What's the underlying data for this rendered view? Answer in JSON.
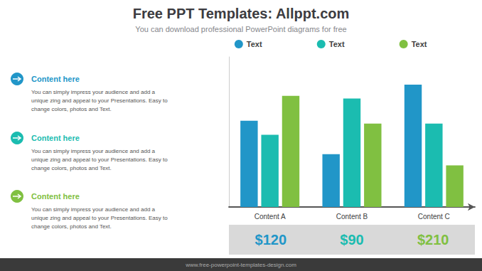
{
  "chart_data": {
    "type": "bar",
    "title": "Free PPT Templates: Allppt.com",
    "subtitle": "You can download professional PowerPoint diagrams for free",
    "categories": [
      "Content A",
      "Content B",
      "Content C"
    ],
    "series": [
      {
        "name": "Text",
        "color": "#2196c8",
        "values": [
          0.62,
          0.38,
          0.88
        ]
      },
      {
        "name": "Text",
        "color": "#1bbcb0",
        "values": [
          0.52,
          0.78,
          0.6
        ]
      },
      {
        "name": "Text",
        "color": "#80c041",
        "values": [
          0.8,
          0.6,
          0.3
        ]
      }
    ],
    "ylim": [
      0,
      1.08
    ],
    "grid": false,
    "legend": "top",
    "tick_labels": "x",
    "annotations": [
      {
        "text": "Content here",
        "color": "#2196c8"
      },
      {
        "text": "You can simply impress your audience and add a\nunique zing and appeal to your Presentations. Easy to\nchange colors, photos and Text."
      },
      {
        "text": "Content here",
        "color": "#1bbcb0"
      },
      {
        "text": "You can simply impress your audience and add a\nunique zing and appeal to your Presentations. Easy to\nchange colors, photos and Text."
      },
      {
        "text": "Content here",
        "color": "#80c041"
      },
      {
        "text": "You can simply impress your audience and add a\nunique zing and appeal to your Presentations. Easy to\nchange colors, photos and Text."
      },
      {
        "text": "$120",
        "color": "#2196c8"
      },
      {
        "text": "$90",
        "color": "#1bbcb0"
      },
      {
        "text": "$210",
        "color": "#80c041"
      },
      {
        "text": "www.free-powerpoint-templates-design.com"
      }
    ]
  }
}
